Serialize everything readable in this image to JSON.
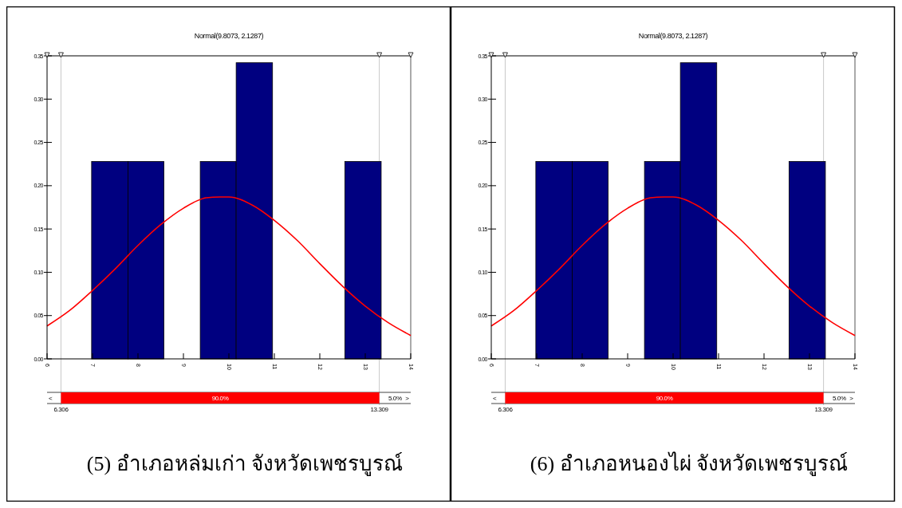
{
  "chart_data": [
    {
      "type": "histogram",
      "title": "Normal(9.8073, 2.1287)",
      "bins": [
        6.98,
        7.78,
        8.57,
        9.37,
        10.16,
        10.96,
        12.55,
        13.35
      ],
      "xlim": [
        6,
        14
      ],
      "xticks": [
        6,
        7,
        8,
        9,
        10,
        11,
        12,
        13,
        14
      ],
      "ylim": [
        0,
        0.35
      ],
      "yticks": [
        {
          "value": 0,
          "label": "0.00"
        },
        {
          "value": 0.05,
          "label": "0.05"
        },
        {
          "value": 0.1,
          "label": "0.10"
        },
        {
          "value": 0.15,
          "label": "0.15"
        },
        {
          "value": 0.2,
          "label": "0.20"
        },
        {
          "value": 0.25,
          "label": "0.25"
        },
        {
          "value": 0.3,
          "label": "0.30"
        },
        {
          "value": 0.35,
          "label": "0.35"
        }
      ],
      "grid": false,
      "series": [
        {
          "color": "#000080",
          "values": [
            0.228,
            0.228,
            0,
            0.228,
            0.342,
            0,
            0.228
          ]
        },
        {
          "type": "line",
          "color": "#ff0000",
          "x": [
            6,
            6.5,
            7,
            7.5,
            8,
            8.5,
            9,
            9.5,
            9.8,
            10,
            10.5,
            11,
            11.5,
            12,
            12.5,
            13,
            13.5,
            14
          ],
          "values": [
            0.038,
            0.056,
            0.079,
            0.104,
            0.131,
            0.155,
            0.174,
            0.186,
            0.187,
            0.187,
            0.178,
            0.16,
            0.137,
            0.11,
            0.084,
            0.061,
            0.042,
            0.027
          ]
        }
      ],
      "ref_lines": [
        {
          "axis": "x",
          "value": 6.306,
          "label": "6.306",
          "color": "#c8c8c8"
        },
        {
          "axis": "x",
          "value": 13.309,
          "label": "13.309",
          "color": "#c8c8c8"
        }
      ],
      "annotations": [
        "<",
        "90.0%",
        "5.0%",
        ">",
        "(5) อำเภอหล่มเก่า  จังหวัดเพชรบูรณ์"
      ]
    },
    {
      "type": "histogram",
      "title": "Normal(9.8073, 2.1287)",
      "bins": [
        6.98,
        7.78,
        8.57,
        9.37,
        10.16,
        10.96,
        12.55,
        13.35
      ],
      "xlim": [
        6,
        14
      ],
      "xticks": [
        6,
        7,
        8,
        9,
        10,
        11,
        12,
        13,
        14
      ],
      "ylim": [
        0,
        0.35
      ],
      "yticks": [
        {
          "value": 0,
          "label": "0.00"
        },
        {
          "value": 0.05,
          "label": "0.05"
        },
        {
          "value": 0.1,
          "label": "0.10"
        },
        {
          "value": 0.15,
          "label": "0.15"
        },
        {
          "value": 0.2,
          "label": "0.20"
        },
        {
          "value": 0.25,
          "label": "0.25"
        },
        {
          "value": 0.3,
          "label": "0.30"
        },
        {
          "value": 0.35,
          "label": "0.35"
        }
      ],
      "grid": false,
      "series": [
        {
          "color": "#000080",
          "values": [
            0.228,
            0.228,
            0,
            0.228,
            0.342,
            0,
            0.228
          ]
        },
        {
          "type": "line",
          "color": "#ff0000",
          "x": [
            6,
            6.5,
            7,
            7.5,
            8,
            8.5,
            9,
            9.5,
            9.8,
            10,
            10.5,
            11,
            11.5,
            12,
            12.5,
            13,
            13.5,
            14
          ],
          "values": [
            0.038,
            0.056,
            0.079,
            0.104,
            0.131,
            0.155,
            0.174,
            0.186,
            0.187,
            0.187,
            0.178,
            0.16,
            0.137,
            0.11,
            0.084,
            0.061,
            0.042,
            0.027
          ]
        }
      ],
      "ref_lines": [
        {
          "axis": "x",
          "value": 6.306,
          "label": "6.306",
          "color": "#c8c8c8"
        },
        {
          "axis": "x",
          "value": 13.309,
          "label": "13.309",
          "color": "#c8c8c8"
        }
      ],
      "annotations": [
        "<",
        "90.0%",
        "5.0%",
        ">",
        "(6) อำเภอหนองไผ่ จังหวัดเพชรบูรณ์"
      ]
    }
  ]
}
